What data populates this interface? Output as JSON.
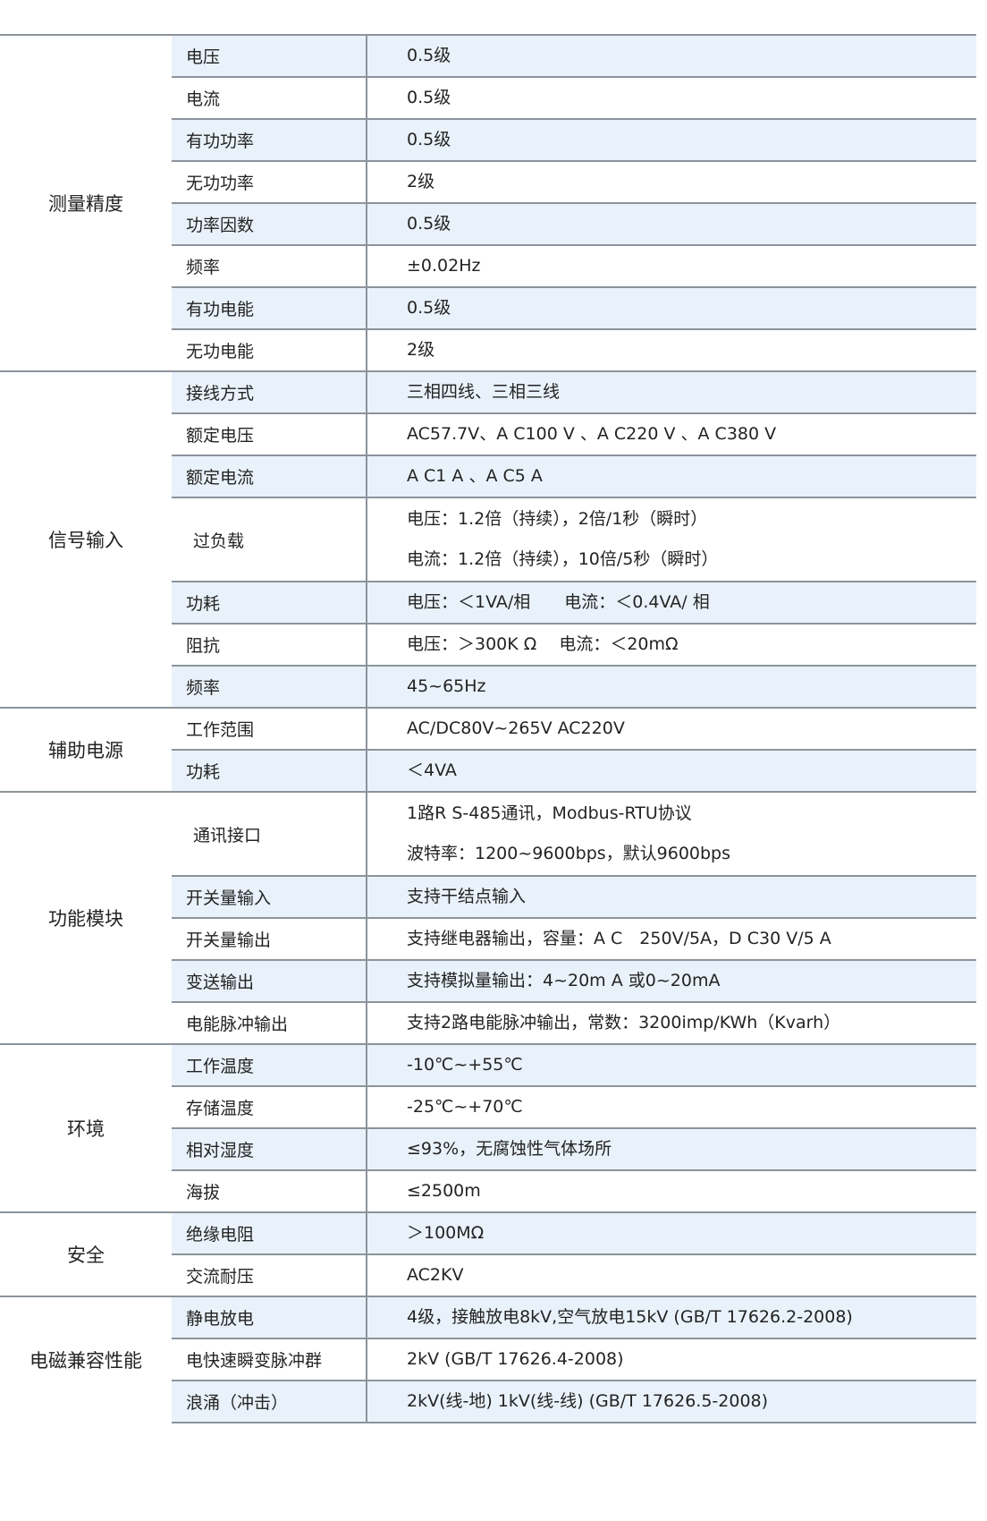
{
  "groups": [
    {
      "name": "测量精度",
      "rows": [
        {
          "label": "电压",
          "values": [
            "0.5级"
          ]
        },
        {
          "label": "电流",
          "values": [
            "0.5级"
          ]
        },
        {
          "label": "有功功率",
          "values": [
            "0.5级"
          ]
        },
        {
          "label": "无功功率",
          "values": [
            "2级"
          ]
        },
        {
          "label": "功率因数",
          "values": [
            "0.5级"
          ]
        },
        {
          "label": "频率",
          "values": [
            "±0.02Hz"
          ]
        },
        {
          "label": "有功电能",
          "values": [
            "0.5级"
          ]
        },
        {
          "label": "无功电能",
          "values": [
            "2级"
          ]
        }
      ]
    },
    {
      "name": "信号输入",
      "rows": [
        {
          "label": "接线方式",
          "values": [
            "三相四线、三相三线"
          ]
        },
        {
          "label": "额定电压",
          "values": [
            "AC57.7V、A C100 V 、A C220 V 、A C380 V"
          ]
        },
        {
          "label": "额定电流",
          "values": [
            "A C1 A 、A C5 A"
          ]
        },
        {
          "label": "过负载",
          "values": [
            "电压：1.2倍（持续），2倍/1秒（瞬时）",
            "电流：1.2倍（持续），10倍/5秒（瞬时）"
          ]
        },
        {
          "label": "功耗",
          "values": [
            "电压：＜1VA/相　　电流：＜0.4VA/ 相"
          ]
        },
        {
          "label": "阻抗",
          "values": [
            "电压：＞300K Ω　 电流：＜20mΩ"
          ]
        },
        {
          "label": "频率",
          "values": [
            "45~65Hz"
          ]
        }
      ]
    },
    {
      "name": "辅助电源",
      "rows": [
        {
          "label": "工作范围",
          "values": [
            "AC/DC80V~265V   AC220V"
          ]
        },
        {
          "label": "功耗",
          "values": [
            "＜4VA"
          ]
        }
      ]
    },
    {
      "name": "功能模块",
      "rows": [
        {
          "label": "通讯接口",
          "values": [
            "1路R S-485通讯，Modbus-RTU协议",
            "波特率：1200~9600bps，默认9600bps"
          ]
        },
        {
          "label": "开关量输入",
          "values": [
            "支持干结点输入"
          ]
        },
        {
          "label": "开关量输出",
          "values": [
            "支持继电器输出，容量：A C　250V/5A，D C30 V/5 A"
          ]
        },
        {
          "label": "变送输出",
          "values": [
            "支持模拟量输出：4~20m A 或0~20mA"
          ]
        },
        {
          "label": "电能脉冲输出",
          "values": [
            "支持2路电能脉冲输出，常数：3200imp/KWh（Kvarh）"
          ]
        }
      ]
    },
    {
      "name": "环境",
      "rows": [
        {
          "label": "工作温度",
          "values": [
            "-10℃~+55℃"
          ]
        },
        {
          "label": "存储温度",
          "values": [
            "-25℃~+70℃"
          ]
        },
        {
          "label": "相对湿度",
          "values": [
            "≤93%，无腐蚀性气体场所"
          ]
        },
        {
          "label": "海拔",
          "values": [
            "≤2500m"
          ]
        }
      ]
    },
    {
      "name": "安全",
      "rows": [
        {
          "label": "绝缘电阻",
          "values": [
            "＞100MΩ"
          ]
        },
        {
          "label": "交流耐压",
          "values": [
            "AC2KV"
          ]
        }
      ]
    },
    {
      "name": "电磁兼容性能",
      "rows": [
        {
          "label": "静电放电",
          "values": [
            "4级，接触放电8kV,空气放电15kV (GB/T 17626.2-2008)"
          ]
        },
        {
          "label": "电快速瞬变脉冲群",
          "values": [
            "2kV (GB/T 17626.4-2008)"
          ]
        },
        {
          "label": "浪涌（冲击）",
          "values": [
            "2kV(线-地) 1kV(线-线) (GB/T 17626.5-2008)"
          ]
        }
      ]
    }
  ],
  "colors": {
    "row_shade": "#e9f2fb",
    "rule": "#8c939b"
  }
}
